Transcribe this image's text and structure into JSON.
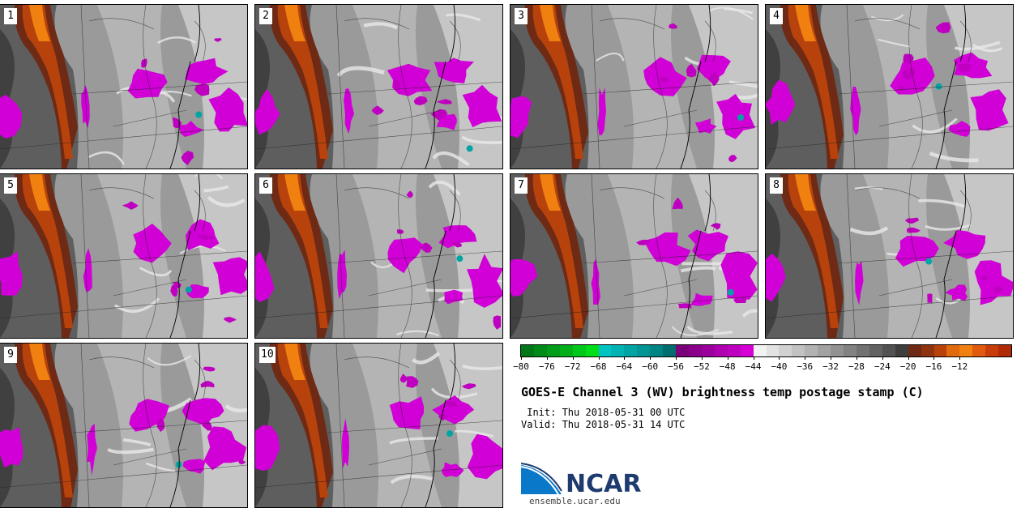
{
  "panels": [
    {
      "label": "1"
    },
    {
      "label": "2"
    },
    {
      "label": "3"
    },
    {
      "label": "4"
    },
    {
      "label": "5"
    },
    {
      "label": "6"
    },
    {
      "label": "7"
    },
    {
      "label": "8"
    },
    {
      "label": "9"
    },
    {
      "label": "10"
    }
  ],
  "colorbar": {
    "colors": [
      "#00781a",
      "#008a1a",
      "#009c1a",
      "#00ae1a",
      "#00c81a",
      "#00de1a",
      "#00c4c4",
      "#00b4b4",
      "#00a4a4",
      "#009494",
      "#008484",
      "#006e6e",
      "#7a007a",
      "#8a008a",
      "#9c009c",
      "#ae00ae",
      "#c000c0",
      "#d600d6",
      "#f2f2f2",
      "#e2e2e2",
      "#d2d2d2",
      "#c2c2c2",
      "#b2b2b2",
      "#a2a2a2",
      "#929292",
      "#828282",
      "#727272",
      "#626262",
      "#525252",
      "#3e3e3e",
      "#6e2a14",
      "#8e3410",
      "#b8420c",
      "#e06a0c",
      "#f08010",
      "#e05a10",
      "#c83c0a",
      "#b02a08"
    ],
    "ticks": [
      "−80",
      "−76",
      "−72",
      "−68",
      "−64",
      "−60",
      "−56",
      "−52",
      "−48",
      "−44",
      "−40",
      "−36",
      "−32",
      "−28",
      "−24",
      "−20",
      "−16",
      "−12"
    ]
  },
  "title": "GOES-E Channel 3 (WV) brightness temp postage stamp (C)",
  "init": " Init: Thu 2018-05-31 00 UTC",
  "valid": "Valid: Thu 2018-05-31 14 UTC",
  "logo": {
    "name": "NCAR",
    "url": "ensemble.ucar.edu"
  }
}
